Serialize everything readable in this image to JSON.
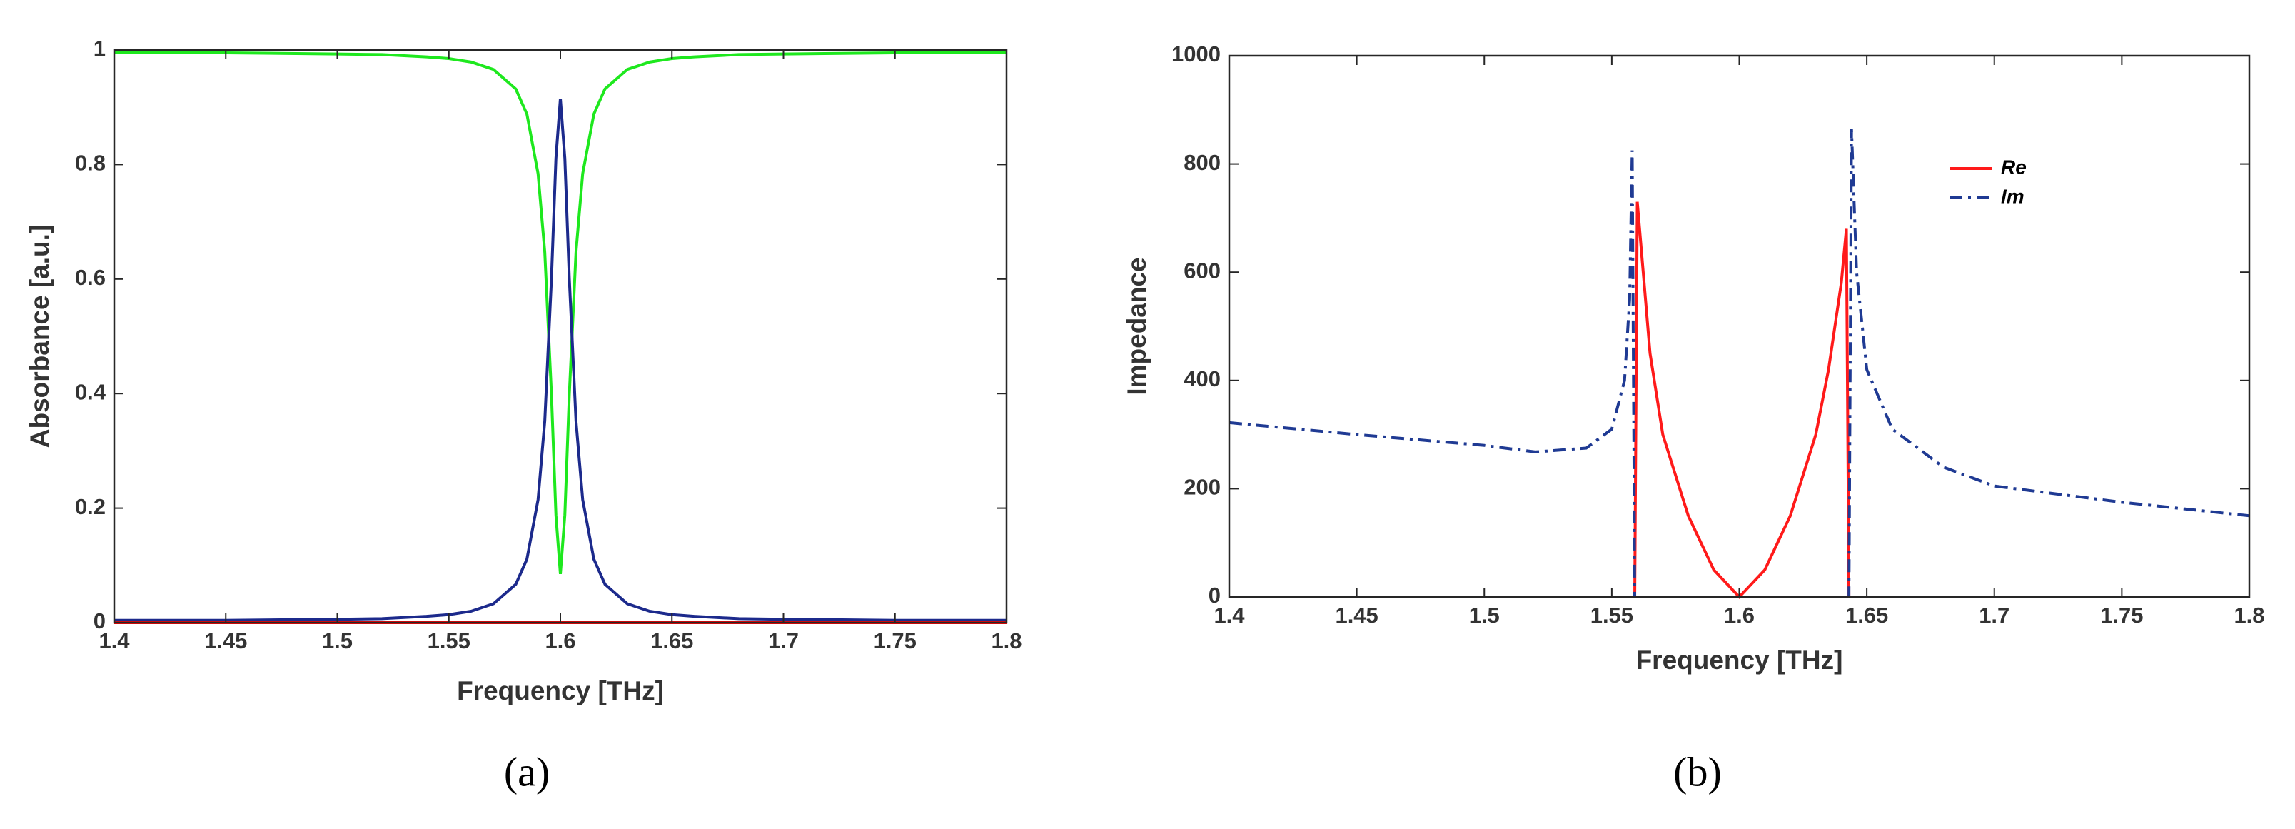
{
  "chart_data": [
    {
      "type": "line",
      "caption": "(a)",
      "x_label": "Frequency [THz]",
      "y_label": "Absorbance [a.u.]",
      "x": [
        1.4,
        1.45,
        1.5,
        1.52,
        1.54,
        1.55,
        1.56,
        1.57,
        1.58,
        1.585,
        1.59,
        1.593,
        1.596,
        1.598,
        1.6,
        1.602,
        1.604,
        1.607,
        1.61,
        1.615,
        1.62,
        1.63,
        1.64,
        1.65,
        1.66,
        1.68,
        1.7,
        1.75,
        1.8
      ],
      "series": [
        {
          "color": "#1ee81e",
          "style": "solid",
          "values": [
            0.995,
            0.995,
            0.993,
            0.992,
            0.988,
            0.985,
            0.979,
            0.966,
            0.932,
            0.888,
            0.784,
            0.647,
            0.398,
            0.188,
            0.085,
            0.188,
            0.398,
            0.647,
            0.784,
            0.888,
            0.932,
            0.966,
            0.979,
            0.985,
            0.988,
            0.992,
            0.993,
            0.995,
            0.995
          ]
        },
        {
          "color": "#1c2a8c",
          "style": "solid",
          "values": [
            0.004,
            0.004,
            0.006,
            0.007,
            0.011,
            0.014,
            0.02,
            0.033,
            0.067,
            0.111,
            0.215,
            0.352,
            0.601,
            0.811,
            0.915,
            0.811,
            0.601,
            0.352,
            0.215,
            0.111,
            0.067,
            0.033,
            0.02,
            0.014,
            0.011,
            0.007,
            0.006,
            0.004,
            0.004
          ]
        },
        {
          "color": "#ff0000",
          "style": "solid",
          "values": [
            0,
            0,
            0,
            0,
            0,
            0,
            0,
            0,
            0,
            0,
            0,
            0,
            0,
            0,
            0,
            0,
            0,
            0,
            0,
            0,
            0,
            0,
            0,
            0,
            0,
            0,
            0,
            0,
            0
          ]
        }
      ],
      "xlim": [
        1.4,
        1.8
      ],
      "xticks": [
        1.4,
        1.45,
        1.5,
        1.55,
        1.6,
        1.65,
        1.7,
        1.75,
        1.8
      ],
      "ylim": [
        0,
        1
      ],
      "yticks": [
        0,
        0.2,
        0.4,
        0.6,
        0.8,
        1
      ]
    },
    {
      "type": "line",
      "caption": "(b)",
      "x_label": "Frequency [THz]",
      "y_label": "Impedance",
      "legend": "upper right",
      "x": [
        1.4,
        1.45,
        1.5,
        1.52,
        1.54,
        1.55,
        1.555,
        1.557,
        1.558,
        1.559,
        1.56,
        1.565,
        1.57,
        1.58,
        1.59,
        1.6,
        1.61,
        1.62,
        1.63,
        1.635,
        1.64,
        1.642,
        1.643,
        1.644,
        1.646,
        1.65,
        1.66,
        1.68,
        1.7,
        1.75,
        1.8
      ],
      "series": [
        {
          "name": "Re",
          "color": "#ff1a1a",
          "style": "solid",
          "values": [
            0,
            0,
            0,
            0,
            0,
            0,
            0,
            0,
            0,
            0,
            730,
            450,
            300,
            150,
            50,
            0,
            50,
            150,
            300,
            420,
            580,
            680,
            0,
            0,
            0,
            0,
            0,
            0,
            0,
            0,
            0
          ]
        },
        {
          "name": "Im",
          "color": "#1f3a93",
          "style": "dashdot",
          "values": [
            322,
            300,
            280,
            268,
            275,
            310,
            400,
            550,
            825,
            0,
            0,
            0,
            0,
            0,
            0,
            0,
            0,
            0,
            0,
            0,
            0,
            0,
            0,
            865,
            600,
            420,
            310,
            240,
            205,
            175,
            150
          ]
        }
      ],
      "xlim": [
        1.4,
        1.8
      ],
      "xticks": [
        1.4,
        1.45,
        1.5,
        1.55,
        1.6,
        1.65,
        1.7,
        1.75,
        1.8
      ],
      "ylim": [
        0,
        1000
      ],
      "yticks": [
        0,
        200,
        400,
        600,
        800,
        1000
      ]
    }
  ]
}
